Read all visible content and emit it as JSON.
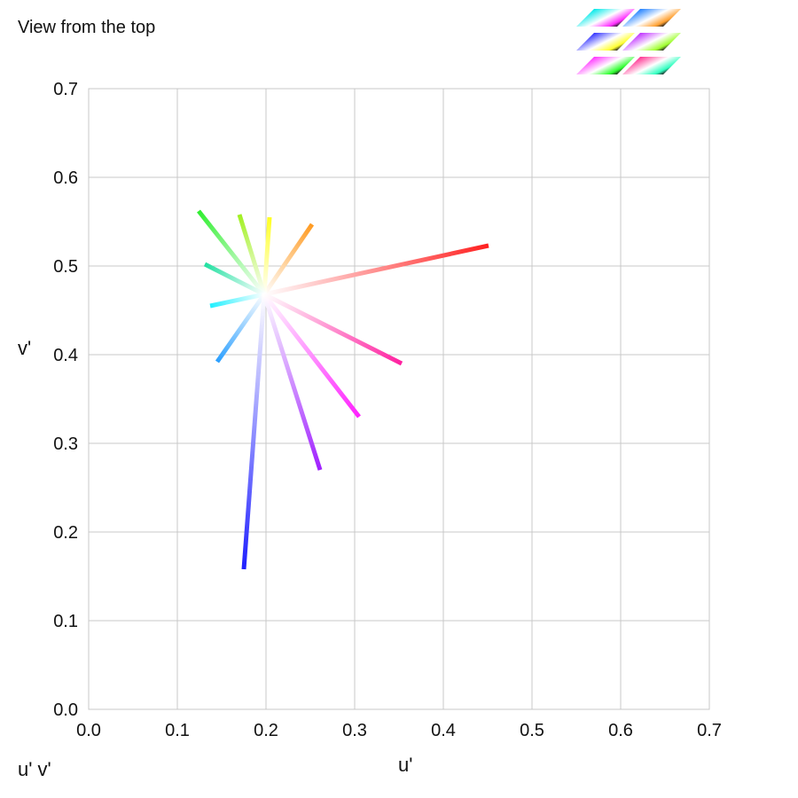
{
  "title": "View from the top",
  "space_label": "u' v'",
  "chart_data": {
    "type": "line",
    "xlabel": "u'",
    "ylabel": "v'",
    "xlim": [
      0,
      0.7
    ],
    "ylim": [
      0,
      0.7
    ],
    "x_ticks": [
      "0.0",
      "0.1",
      "0.2",
      "0.3",
      "0.4",
      "0.5",
      "0.6",
      "0.7"
    ],
    "y_ticks": [
      "0.0",
      "0.1",
      "0.2",
      "0.3",
      "0.4",
      "0.5",
      "0.6",
      "0.7"
    ],
    "grid": true,
    "white_point": [
      0.198,
      0.468
    ],
    "series": [
      {
        "color": "#ff2020",
        "x": [
          0.198,
          0.451
        ],
        "y": [
          0.468,
          0.523
        ]
      },
      {
        "color": "#ff9a20",
        "x": [
          0.198,
          0.252
        ],
        "y": [
          0.468,
          0.547
        ]
      },
      {
        "color": "#ffff20",
        "x": [
          0.198,
          0.204
        ],
        "y": [
          0.468,
          0.555
        ]
      },
      {
        "color": "#a0f020",
        "x": [
          0.198,
          0.17
        ],
        "y": [
          0.468,
          0.558
        ]
      },
      {
        "color": "#30ee30",
        "x": [
          0.198,
          0.124
        ],
        "y": [
          0.468,
          0.562
        ]
      },
      {
        "color": "#20e0a0",
        "x": [
          0.198,
          0.131
        ],
        "y": [
          0.468,
          0.502
        ]
      },
      {
        "color": "#20f0ff",
        "x": [
          0.198,
          0.137
        ],
        "y": [
          0.468,
          0.455
        ]
      },
      {
        "color": "#2a9fff",
        "x": [
          0.198,
          0.145
        ],
        "y": [
          0.468,
          0.392
        ]
      },
      {
        "color": "#2020ff",
        "x": [
          0.198,
          0.175
        ],
        "y": [
          0.468,
          0.158
        ]
      },
      {
        "color": "#a020ff",
        "x": [
          0.198,
          0.261
        ],
        "y": [
          0.468,
          0.27
        ]
      },
      {
        "color": "#ff20ff",
        "x": [
          0.198,
          0.305
        ],
        "y": [
          0.468,
          0.33
        ]
      },
      {
        "color": "#ff20a0",
        "x": [
          0.198,
          0.353
        ],
        "y": [
          0.468,
          0.39
        ]
      }
    ]
  },
  "thumbnails": [
    {
      "icon": "cube-face-icon",
      "colors": [
        "#00e8e8",
        "#ffffff",
        "#ff30ff",
        "#202020"
      ]
    },
    {
      "icon": "cube-face-icon",
      "colors": [
        "#2080ff",
        "#ffffff",
        "#ffa030",
        "#202020"
      ]
    },
    {
      "icon": "cube-face-icon",
      "colors": [
        "#3030ff",
        "#ffffff",
        "#ffff30",
        "#202020"
      ]
    },
    {
      "icon": "cube-face-icon",
      "colors": [
        "#c030ff",
        "#ffffff",
        "#a0ff30",
        "#202020"
      ]
    },
    {
      "icon": "cube-face-icon",
      "colors": [
        "#ff30ff",
        "#ffffff",
        "#30ff30",
        "#202020"
      ]
    },
    {
      "icon": "cube-face-icon",
      "colors": [
        "#ff3090",
        "#ffffff",
        "#30ffc0",
        "#202020"
      ]
    }
  ]
}
